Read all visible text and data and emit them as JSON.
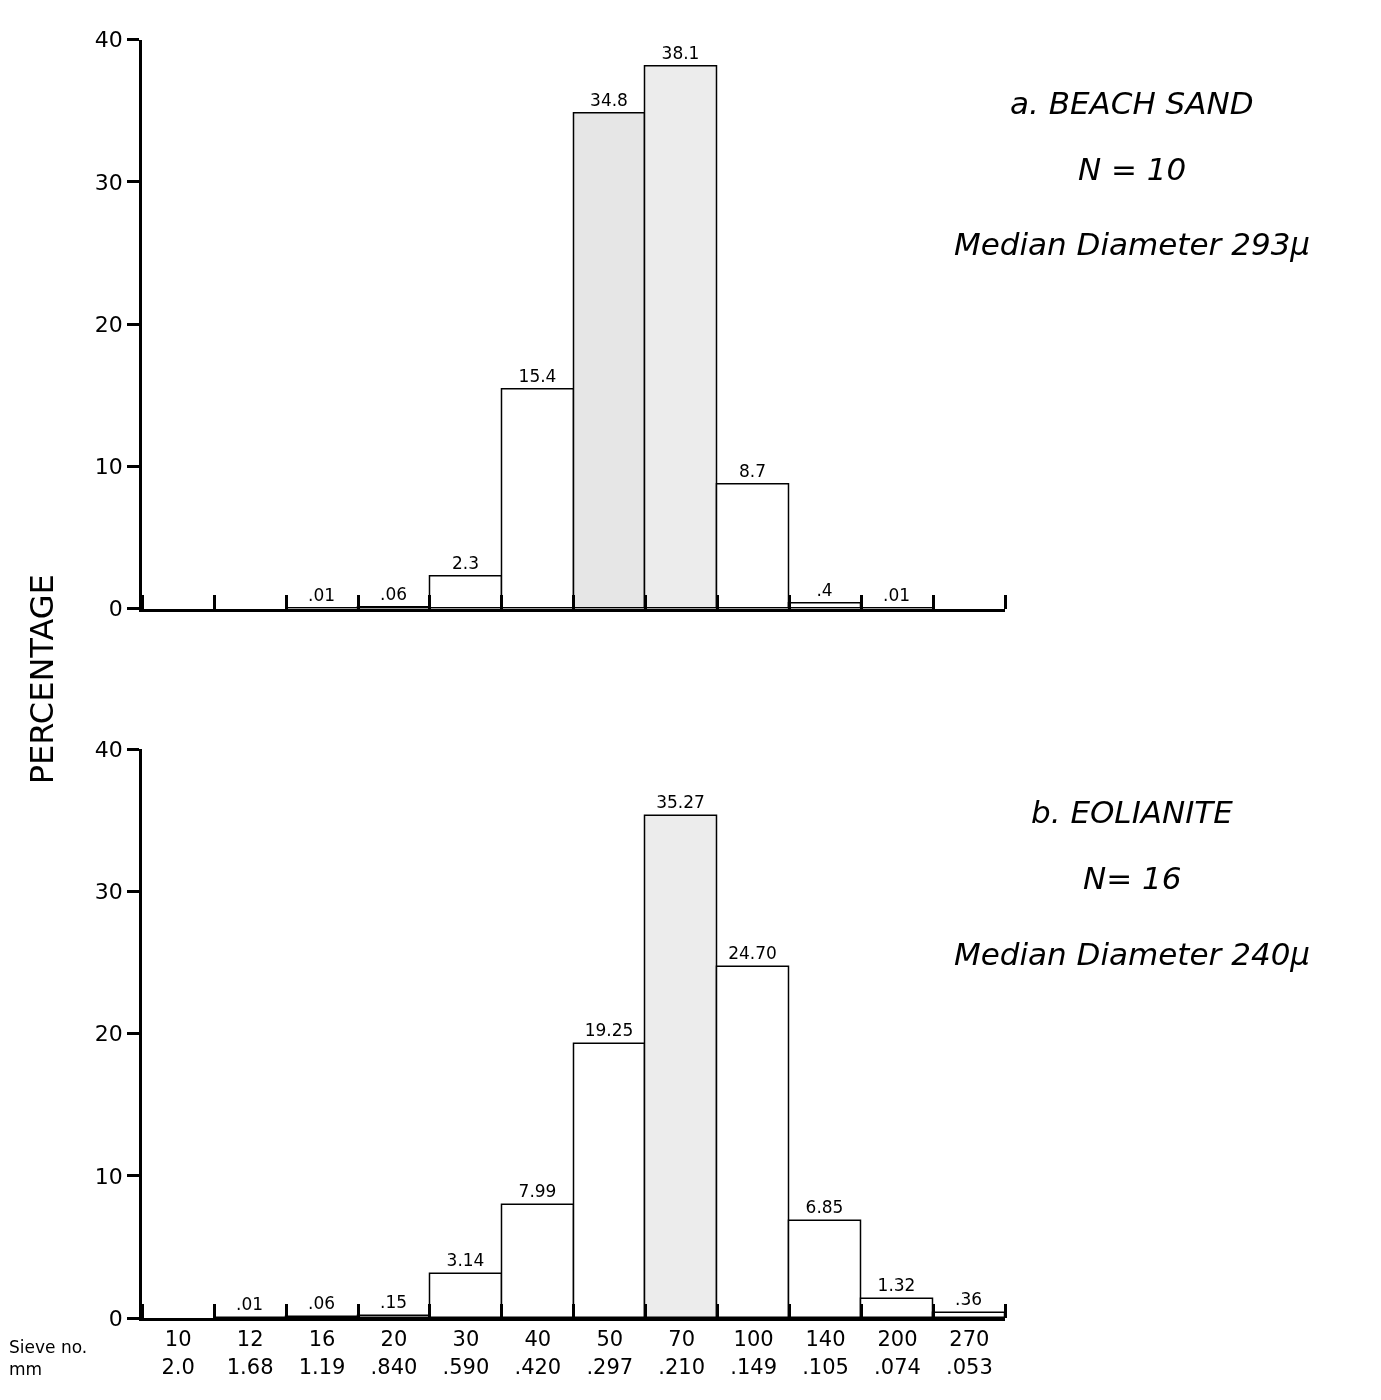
{
  "chart_data": [
    {
      "type": "bar",
      "ylabel": "PERCENTAGE",
      "annotations": [
        "a. BEACH SAND",
        "N = 10",
        "Median Diameter 293μ"
      ],
      "categories": [
        null,
        null,
        null,
        null,
        null,
        null,
        null,
        null,
        null,
        null,
        null,
        null
      ],
      "values": [
        null,
        null,
        0.01,
        0.06,
        2.3,
        15.4,
        34.8,
        38.1,
        8.7,
        0.4,
        0.01,
        null
      ],
      "value_labels": [
        null,
        null,
        ".01",
        ".06",
        "2.3",
        "15.4",
        "34.8",
        "38.1",
        "8.7",
        ".4",
        ".01",
        null
      ],
      "colors": [
        "#ffffff",
        "#ffffff",
        "#000000",
        "#ffffff",
        "#ffffff",
        "#ffffff",
        "#e6e6e6",
        "#ececec",
        "#ffffff",
        "#ffffff",
        "#000000",
        "#ffffff"
      ],
      "ylim": [
        0,
        40
      ],
      "yticks": [
        0,
        10,
        20,
        30,
        40
      ],
      "tick_labels": "y",
      "legend": false
    },
    {
      "type": "bar",
      "xlabel": "Sieve no.\nmm",
      "annotations": [
        "b. EOLIANITE",
        "N= 16",
        "Median Diameter 240μ"
      ],
      "categories": [
        "10\n2.0",
        "12\n1.68",
        "16\n1.19",
        "20\n.840",
        "30\n.590",
        "40\n.420",
        "50\n.297",
        "70\n.210",
        "100\n.149",
        "140\n.105",
        "200\n.074",
        "270\n.053"
      ],
      "values": [
        null,
        0.01,
        0.06,
        0.15,
        3.14,
        7.99,
        19.25,
        35.27,
        24.7,
        6.85,
        1.32,
        0.36
      ],
      "value_labels": [
        null,
        ".01",
        ".06",
        ".15",
        "3.14",
        "7.99",
        "19.25",
        "35.27",
        "24.70",
        "6.85",
        "1.32",
        ".36"
      ],
      "colors": [
        "#ffffff",
        "#000000",
        "#ffffff",
        "#ffffff",
        "#ffffff",
        "#ffffff",
        "#ffffff",
        "#ececec",
        "#ffffff",
        "#ffffff",
        "#ffffff",
        "#ffffff"
      ],
      "ylim": [
        0,
        40
      ],
      "yticks": [
        0,
        10,
        20,
        30,
        40
      ],
      "legend": false
    }
  ]
}
